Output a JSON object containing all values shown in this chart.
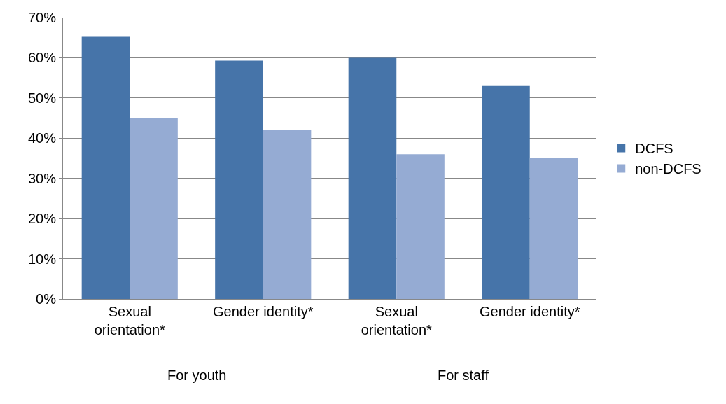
{
  "chart_data": {
    "type": "bar",
    "categories": [
      "Sexual orientation*",
      "Gender identity*",
      "Sexual orientation*",
      "Gender identity*"
    ],
    "series": [
      {
        "name": "DCFS",
        "color": "#4674a9",
        "values": [
          65.2,
          59.3,
          60,
          53
        ]
      },
      {
        "name": "non-DCFS",
        "color": "#95abd3",
        "values": [
          45,
          42,
          36,
          35
        ]
      }
    ],
    "ylim": [
      0,
      70
    ],
    "yticks": [
      {
        "value": 0,
        "label": "0%"
      },
      {
        "value": 10,
        "label": "10%"
      },
      {
        "value": 20,
        "label": "20%"
      },
      {
        "value": 30,
        "label": "30%"
      },
      {
        "value": 40,
        "label": "40%"
      },
      {
        "value": 50,
        "label": "50%"
      },
      {
        "value": 60,
        "label": "60%"
      },
      {
        "value": 70,
        "label": "70%"
      }
    ],
    "annotations": [
      "For youth",
      "For staff"
    ],
    "grid": "y",
    "legend": "right"
  }
}
